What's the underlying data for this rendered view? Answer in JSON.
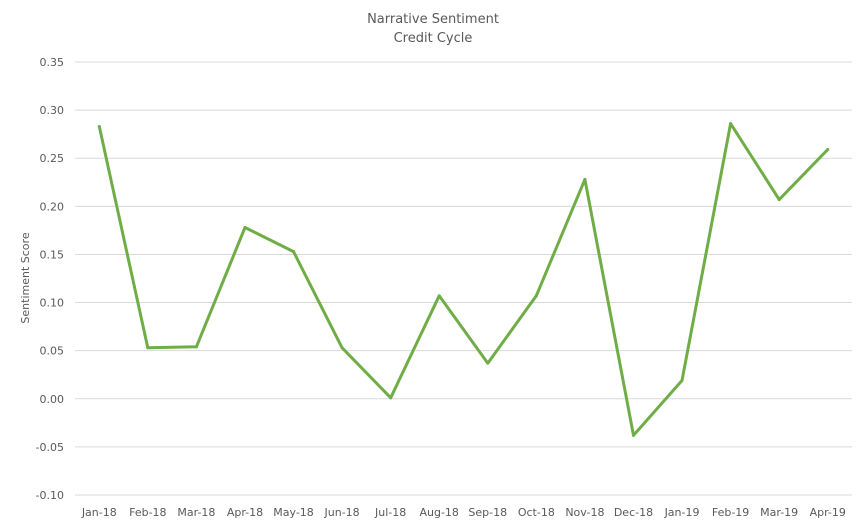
{
  "chart_data": {
    "type": "line",
    "title": "Narrative Sentiment",
    "subtitle": "Credit Cycle",
    "ylabel": "Sentiment Score",
    "xlabel": "",
    "ylim": [
      -0.1,
      0.35
    ],
    "yticks": [
      "0.35",
      "0.30",
      "0.25",
      "0.20",
      "0.15",
      "0.10",
      "0.05",
      "0.00",
      "-0.05",
      "-0.10"
    ],
    "ytick_values": [
      0.35,
      0.3,
      0.25,
      0.2,
      0.15,
      0.1,
      0.05,
      0.0,
      -0.05,
      -0.1
    ],
    "grid": true,
    "legend": "none",
    "categories": [
      "Jan-18",
      "Feb-18",
      "Mar-18",
      "Apr-18",
      "May-18",
      "Jun-18",
      "Jul-18",
      "Aug-18",
      "Sep-18",
      "Oct-18",
      "Nov-18",
      "Dec-18",
      "Jan-19",
      "Feb-19",
      "Mar-19",
      "Apr-19"
    ],
    "series": [
      {
        "color": "#70ad47",
        "values": [
          0.283,
          0.053,
          0.054,
          0.178,
          0.153,
          0.053,
          0.001,
          0.107,
          0.037,
          0.107,
          0.228,
          -0.038,
          0.019,
          0.286,
          0.207,
          0.259
        ]
      }
    ]
  }
}
